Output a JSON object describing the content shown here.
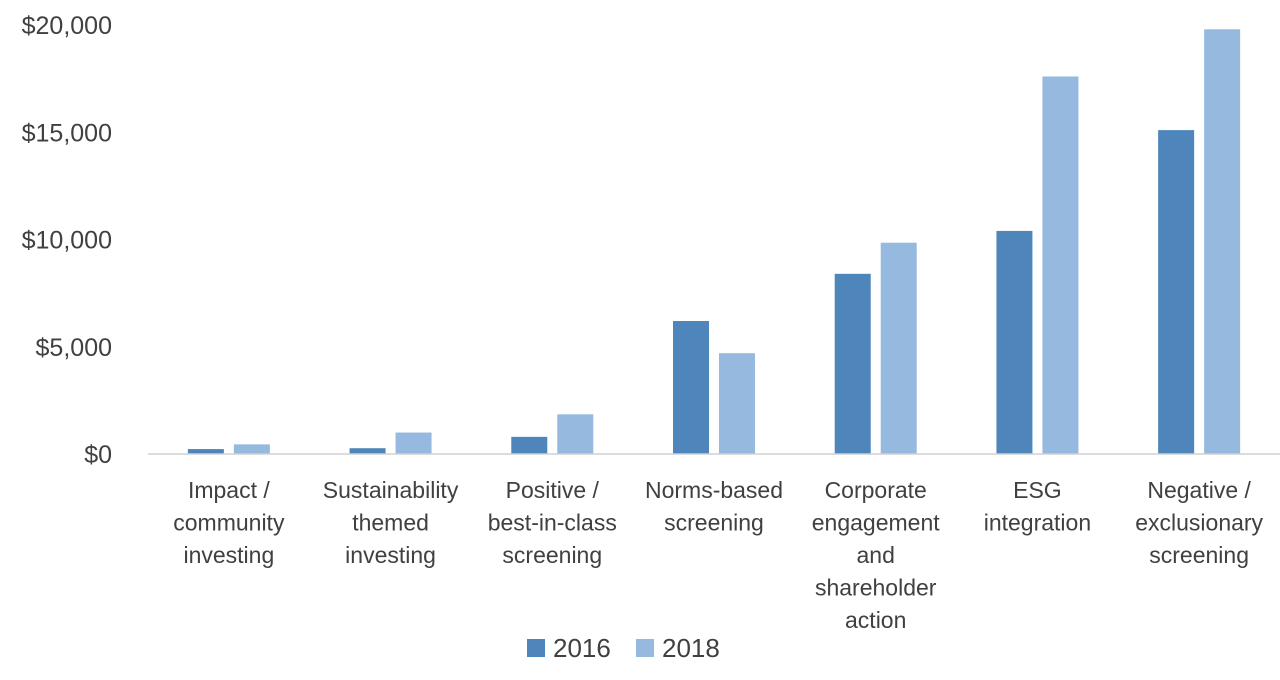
{
  "chart_data": {
    "type": "bar",
    "title": "",
    "xlabel": "",
    "ylabel": "",
    "ylim": [
      0,
      20000
    ],
    "y_ticks": [
      "$0",
      "$5,000",
      "$10,000",
      "$15,000",
      "$20,000"
    ],
    "grid": false,
    "legend_position": "bottom",
    "categories": [
      [
        "Impact /",
        "community",
        "investing"
      ],
      [
        "Sustainability",
        "themed",
        "investing"
      ],
      [
        "Positive /",
        "best-in-class",
        "screening"
      ],
      [
        "Norms-based",
        "screening"
      ],
      [
        "Corporate",
        "engagement",
        "and",
        "shareholder",
        "action"
      ],
      [
        "ESG",
        "integration"
      ],
      [
        "Negative /",
        "exclusionary",
        "screening"
      ]
    ],
    "series": [
      {
        "name": "2016",
        "color": "#4e86bb",
        "values": [
          230,
          270,
          800,
          6200,
          8400,
          10400,
          15100
        ]
      },
      {
        "name": "2018",
        "color": "#96b9df",
        "values": [
          450,
          1000,
          1850,
          4700,
          9850,
          17600,
          19800
        ]
      }
    ]
  }
}
